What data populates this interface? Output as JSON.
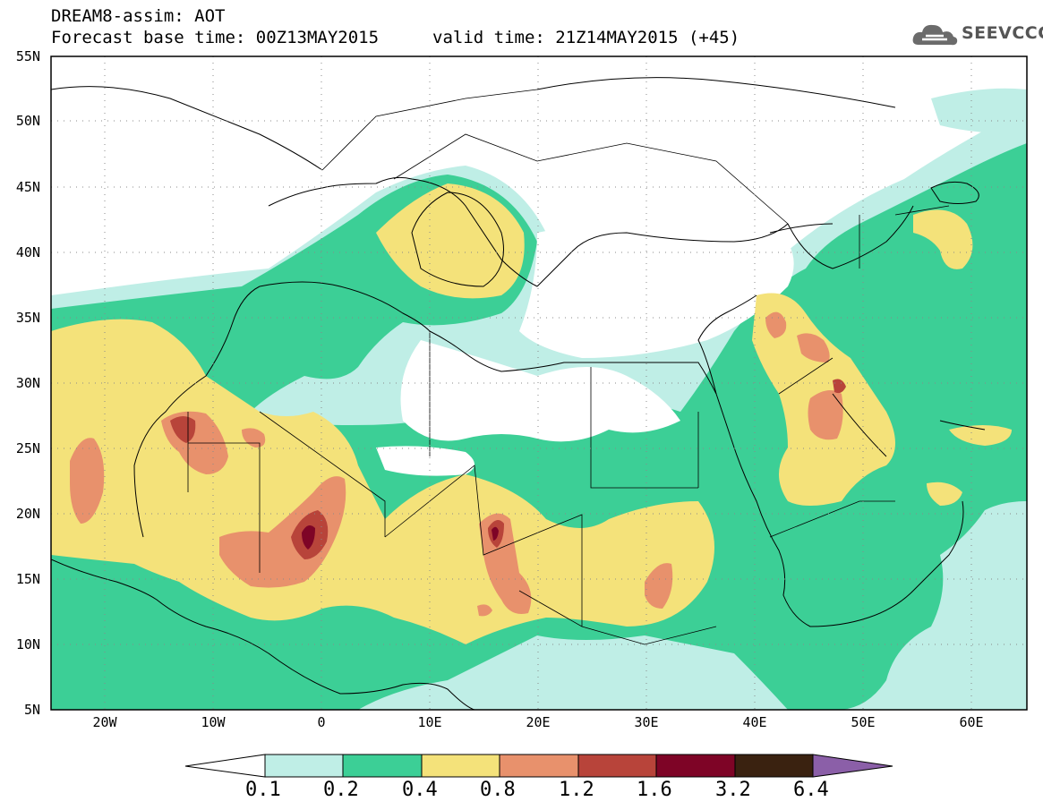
{
  "header": {
    "model_line": "DREAM8-assim: AOT",
    "base_time": "Forecast base time: 00Z13MAY2015",
    "valid_time": "valid time: 21Z14MAY2015 (+45)"
  },
  "logo": {
    "text": "SEEVCCC",
    "icon": "cloud-icon"
  },
  "map": {
    "lon_range": [
      -25,
      65
    ],
    "lat_range": [
      5,
      55
    ],
    "lat_ticks": [
      "5N",
      "10N",
      "15N",
      "20N",
      "25N",
      "30N",
      "35N",
      "40N",
      "45N",
      "50N",
      "55N"
    ],
    "lon_ticks": [
      "20W",
      "10W",
      "0",
      "10E",
      "20E",
      "30E",
      "40E",
      "50E",
      "60E"
    ],
    "grid": "dotted"
  },
  "colorbar": {
    "labels": [
      "0.1",
      "0.2",
      "0.4",
      "0.8",
      "1.2",
      "1.6",
      "3.2",
      "6.4"
    ],
    "colors": [
      "#ffffff",
      "#bfeee6",
      "#3ccf96",
      "#f4e27a",
      "#e8916c",
      "#b8443a",
      "#7e0426",
      "#3a2210",
      "#8b5fa8"
    ]
  }
}
